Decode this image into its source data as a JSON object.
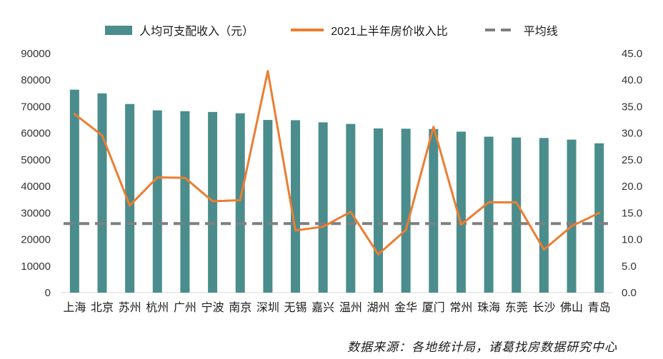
{
  "chart_data": {
    "type": "bar",
    "subtype": "combo-bar-line-dual-axis",
    "title": "",
    "categories": [
      "上海",
      "北京",
      "苏州",
      "杭州",
      "广州",
      "宁波",
      "南京",
      "深圳",
      "无锡",
      "嘉兴",
      "温州",
      "湖州",
      "金华",
      "厦门",
      "常州",
      "珠海",
      "东莞",
      "长沙",
      "佛山",
      "青岛"
    ],
    "series": [
      {
        "name": "人均可支配收入（元）",
        "type": "bar",
        "axis": "left",
        "color": "#4a8d8c",
        "values": [
          76400,
          75000,
          71000,
          68600,
          68300,
          68000,
          67500,
          65000,
          64900,
          64100,
          63500,
          61800,
          61700,
          61600,
          60600,
          58700,
          58400,
          58200,
          57600,
          56200
        ]
      },
      {
        "name": "2021上半年房价收入比",
        "type": "line",
        "axis": "right",
        "color": "#ED7D31",
        "values": [
          33.6,
          29.6,
          16.4,
          21.7,
          21.6,
          17.2,
          17.4,
          41.7,
          11.7,
          12.4,
          15.2,
          7.2,
          11.8,
          31.2,
          12.8,
          17.0,
          17.0,
          8.1,
          12.5,
          15.0
        ]
      },
      {
        "name": "平均线",
        "type": "dashed-line",
        "axis": "right",
        "color": "#7f7f7f",
        "value": 13.0
      }
    ],
    "left_axis": {
      "min": 0,
      "max": 90000,
      "step": 10000
    },
    "right_axis": {
      "min": 0,
      "max": 45,
      "step": 5,
      "decimals": 1
    },
    "grid": false,
    "legend_position": "top",
    "source_note": "数据来源：各地统计局，诸葛找房数据研究中心"
  }
}
